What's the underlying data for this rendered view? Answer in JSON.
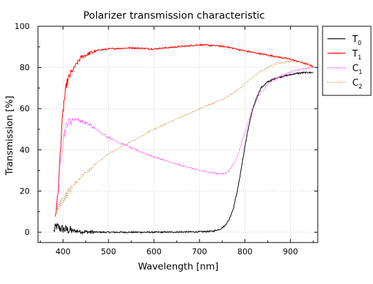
{
  "chart_data": {
    "type": "line",
    "title": "Polarizer transmission characteristic",
    "xlabel": "Wavelength [nm]",
    "ylabel": "Transmission [%]",
    "xlim": [
      345,
      960
    ],
    "ylim": [
      -5,
      100
    ],
    "xticks": [
      400,
      500,
      600,
      700,
      800,
      900
    ],
    "yticks": [
      0,
      20,
      40,
      60,
      80,
      100
    ],
    "grid": true,
    "legend_position": "right",
    "series": [
      {
        "name": "T",
        "subscript": "0",
        "color": "#000000",
        "dashed": false,
        "noisy": true,
        "points": [
          [
            380,
            0.5
          ],
          [
            385,
            3
          ],
          [
            392,
            2
          ],
          [
            400,
            1.5
          ],
          [
            420,
            0.8
          ],
          [
            440,
            0.3
          ],
          [
            460,
            0.1
          ],
          [
            500,
            0
          ],
          [
            600,
            0
          ],
          [
            700,
            0.2
          ],
          [
            730,
            0.5
          ],
          [
            745,
            1.5
          ],
          [
            755,
            3
          ],
          [
            765,
            6
          ],
          [
            775,
            12
          ],
          [
            785,
            22
          ],
          [
            795,
            35
          ],
          [
            805,
            48
          ],
          [
            815,
            58
          ],
          [
            825,
            65
          ],
          [
            835,
            70
          ],
          [
            850,
            73
          ],
          [
            870,
            75
          ],
          [
            890,
            76
          ],
          [
            910,
            77
          ],
          [
            930,
            77.5
          ],
          [
            950,
            77.5
          ]
        ]
      },
      {
        "name": "T",
        "subscript": "1",
        "color": "#ff0000",
        "dashed": false,
        "noisy": true,
        "points": [
          [
            383,
            8
          ],
          [
            387,
            14
          ],
          [
            390,
            22
          ],
          [
            393,
            35
          ],
          [
            397,
            50
          ],
          [
            402,
            63
          ],
          [
            408,
            72
          ],
          [
            415,
            76
          ],
          [
            425,
            80
          ],
          [
            440,
            85
          ],
          [
            460,
            87
          ],
          [
            480,
            88.5
          ],
          [
            500,
            89
          ],
          [
            550,
            89.5
          ],
          [
            600,
            89
          ],
          [
            650,
            90
          ],
          [
            700,
            91
          ],
          [
            740,
            90.5
          ],
          [
            760,
            90
          ],
          [
            800,
            88
          ],
          [
            850,
            86
          ],
          [
            900,
            84
          ],
          [
            930,
            82
          ],
          [
            950,
            80.5
          ]
        ]
      },
      {
        "name": "C",
        "subscript": "1",
        "color": "#ff33ff",
        "dashed": true,
        "noisy": true,
        "points": [
          [
            384,
            10
          ],
          [
            388,
            18
          ],
          [
            392,
            28
          ],
          [
            396,
            38
          ],
          [
            400,
            45
          ],
          [
            405,
            50
          ],
          [
            410,
            53
          ],
          [
            420,
            54.5
          ],
          [
            430,
            55
          ],
          [
            440,
            54
          ],
          [
            460,
            52
          ],
          [
            480,
            49
          ],
          [
            500,
            46
          ],
          [
            550,
            41
          ],
          [
            600,
            36.5
          ],
          [
            650,
            33
          ],
          [
            700,
            30
          ],
          [
            740,
            28.5
          ],
          [
            755,
            28.5
          ],
          [
            765,
            30
          ],
          [
            775,
            33
          ],
          [
            785,
            38
          ],
          [
            795,
            45
          ],
          [
            805,
            52
          ],
          [
            815,
            59
          ],
          [
            830,
            66
          ],
          [
            850,
            72
          ],
          [
            880,
            76
          ],
          [
            910,
            78.5
          ],
          [
            950,
            80
          ]
        ]
      },
      {
        "name": "C",
        "subscript": "2",
        "color": "#d4a05a",
        "dashed": true,
        "noisy": true,
        "points": [
          [
            384,
            8
          ],
          [
            388,
            11
          ],
          [
            392,
            13
          ],
          [
            400,
            16
          ],
          [
            420,
            22
          ],
          [
            440,
            27
          ],
          [
            460,
            31
          ],
          [
            500,
            38
          ],
          [
            550,
            44
          ],
          [
            600,
            50
          ],
          [
            650,
            55
          ],
          [
            700,
            60
          ],
          [
            750,
            64.5
          ],
          [
            770,
            67
          ],
          [
            790,
            70
          ],
          [
            810,
            74
          ],
          [
            830,
            77.5
          ],
          [
            850,
            80
          ],
          [
            870,
            82
          ],
          [
            900,
            83
          ],
          [
            930,
            82.5
          ],
          [
            950,
            81
          ]
        ]
      }
    ]
  }
}
